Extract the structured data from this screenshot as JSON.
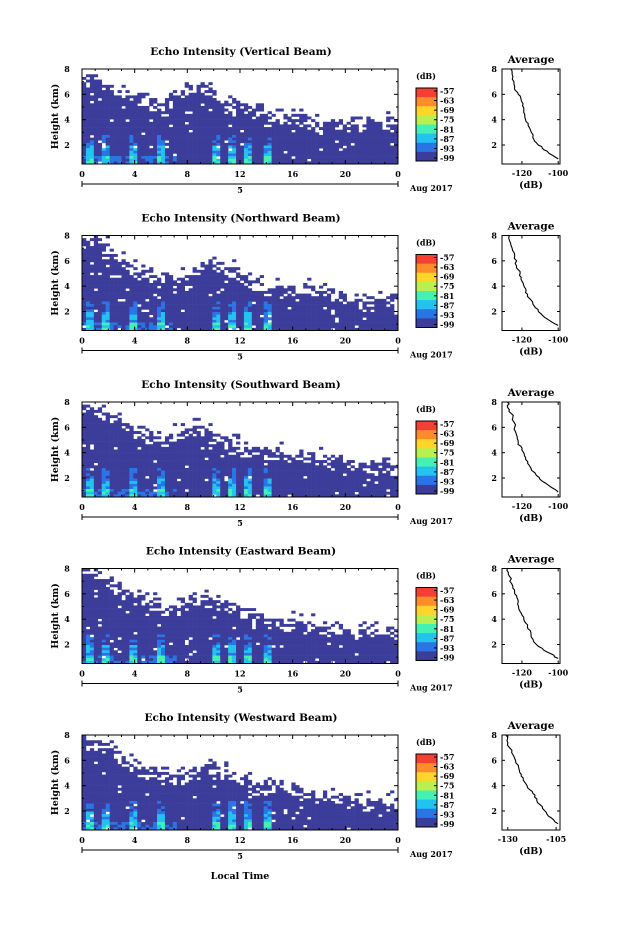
{
  "chart_data": [
    {
      "type": "heatmap",
      "title": "Echo Intensity (Vertical Beam)",
      "ylabel": "Height (km)",
      "x_ticks": [
        "0",
        "4",
        "8",
        "12",
        "16",
        "20",
        "0"
      ],
      "x_day_labels": [
        "5"
      ],
      "date_label": "Aug 2017",
      "y_ticks": [
        "2",
        "4",
        "6",
        "8"
      ],
      "ylim": [
        0.5,
        8.0
      ],
      "colorbar": {
        "label": "(dB)",
        "ticks": [
          "-57",
          "-63",
          "-69",
          "-75",
          "-81",
          "-87",
          "-93",
          "-99"
        ]
      },
      "colors": [
        "#f43f35",
        "#ff8c2a",
        "#ffd52b",
        "#b9f050",
        "#45f0b3",
        "#23c2ef",
        "#2a75e6",
        "#3c3d9a"
      ],
      "cloud_top_km": [
        8,
        7.4,
        6.9,
        6.4,
        6.0,
        5.8,
        5.7,
        6.0,
        6.8,
        6.9,
        6.2,
        5.6,
        5.2,
        5.0,
        4.7,
        4.5,
        4.3,
        4.2,
        4.1,
        4.0,
        4.0,
        4.0,
        4.0,
        4.0,
        4.0
      ],
      "average": {
        "title": "Average",
        "xlabel": "(dB)",
        "x_ticks": [
          "-120",
          "-100"
        ],
        "y_ticks": [
          "2",
          "4",
          "6",
          "8"
        ],
        "xlim": [
          -131,
          -99
        ],
        "points": [
          [
            -126,
            8.0
          ],
          [
            -125,
            7.4
          ],
          [
            -124,
            6.6
          ],
          [
            -122,
            6.0
          ],
          [
            -120,
            5.4
          ],
          [
            -119,
            4.8
          ],
          [
            -118,
            4.0
          ],
          [
            -116,
            3.4
          ],
          [
            -114,
            2.6
          ],
          [
            -111,
            2.0
          ],
          [
            -106,
            1.5
          ],
          [
            -100,
            0.9
          ]
        ]
      }
    },
    {
      "type": "heatmap",
      "title": "Echo Intensity (Northward Beam)",
      "ylabel": "Height (km)",
      "x_ticks": [
        "0",
        "4",
        "8",
        "12",
        "16",
        "20",
        "0"
      ],
      "x_day_labels": [
        "5"
      ],
      "date_label": "Aug 2017",
      "y_ticks": [
        "2",
        "4",
        "6",
        "8"
      ],
      "ylim": [
        0.5,
        8.0
      ],
      "colorbar": {
        "label": "(dB)",
        "ticks": [
          "-57",
          "-63",
          "-69",
          "-75",
          "-81",
          "-87",
          "-93",
          "-99"
        ]
      },
      "colors": [
        "#f43f35",
        "#ff8c2a",
        "#ffd52b",
        "#b9f050",
        "#45f0b3",
        "#23c2ef",
        "#2a75e6",
        "#3c3d9a"
      ],
      "cloud_top_km": [
        8,
        7.8,
        7.2,
        6.4,
        5.6,
        5.2,
        4.9,
        4.6,
        4.8,
        5.6,
        6.0,
        5.8,
        5.2,
        4.6,
        4.2,
        4.0,
        4.0,
        4.0,
        3.8,
        3.6,
        3.4,
        3.3,
        3.2,
        3.2,
        3.1
      ],
      "average": {
        "title": "Average",
        "xlabel": "(dB)",
        "x_ticks": [
          "-120",
          "-100"
        ],
        "y_ticks": [
          "2",
          "4",
          "6",
          "8"
        ],
        "xlim": [
          -131,
          -99
        ],
        "points": [
          [
            -127,
            8.0
          ],
          [
            -126,
            7.2
          ],
          [
            -124,
            6.4
          ],
          [
            -123,
            5.6
          ],
          [
            -121,
            5.0
          ],
          [
            -120,
            4.4
          ],
          [
            -118,
            3.8
          ],
          [
            -117,
            3.2
          ],
          [
            -114,
            2.6
          ],
          [
            -111,
            2.0
          ],
          [
            -106,
            1.4
          ],
          [
            -100,
            0.9
          ]
        ]
      }
    },
    {
      "type": "heatmap",
      "title": "Echo Intensity (Southward Beam)",
      "ylabel": "Height (km)",
      "x_ticks": [
        "0",
        "4",
        "8",
        "12",
        "16",
        "20",
        "0"
      ],
      "x_day_labels": [
        "5"
      ],
      "date_label": "Aug 2017",
      "y_ticks": [
        "2",
        "4",
        "6",
        "8"
      ],
      "ylim": [
        0.5,
        8.0
      ],
      "colorbar": {
        "label": "(dB)",
        "ticks": [
          "-57",
          "-63",
          "-69",
          "-75",
          "-81",
          "-87",
          "-93",
          "-99"
        ]
      },
      "colors": [
        "#f43f35",
        "#ff8c2a",
        "#ffd52b",
        "#b9f050",
        "#45f0b3",
        "#23c2ef",
        "#2a75e6",
        "#3c3d9a"
      ],
      "cloud_top_km": [
        8,
        7.8,
        7.3,
        6.6,
        6.0,
        5.6,
        5.4,
        5.6,
        6.0,
        6.0,
        5.6,
        5.0,
        4.6,
        4.4,
        4.3,
        4.2,
        4.1,
        4.0,
        4.0,
        3.8,
        3.6,
        3.4,
        3.3,
        3.2,
        3.2
      ],
      "average": {
        "title": "Average",
        "xlabel": "(dB)",
        "x_ticks": [
          "-120",
          "-100"
        ],
        "y_ticks": [
          "2",
          "4",
          "6",
          "8"
        ],
        "xlim": [
          -131,
          -99
        ],
        "points": [
          [
            -128,
            8.0
          ],
          [
            -127,
            7.4
          ],
          [
            -125,
            6.8
          ],
          [
            -124,
            6.0
          ],
          [
            -123,
            5.4
          ],
          [
            -122,
            4.8
          ],
          [
            -120,
            4.2
          ],
          [
            -118,
            3.6
          ],
          [
            -116,
            3.0
          ],
          [
            -112,
            2.2
          ],
          [
            -107,
            1.6
          ],
          [
            -100,
            0.9
          ]
        ]
      }
    },
    {
      "type": "heatmap",
      "title": "Echo Intensity (Eastward Beam)",
      "ylabel": "Height (km)",
      "x_ticks": [
        "0",
        "4",
        "8",
        "12",
        "16",
        "20",
        "0"
      ],
      "x_day_labels": [
        "5"
      ],
      "date_label": "Aug 2017",
      "y_ticks": [
        "2",
        "4",
        "6",
        "8"
      ],
      "ylim": [
        0.5,
        8.0
      ],
      "colorbar": {
        "label": "(dB)",
        "ticks": [
          "-57",
          "-63",
          "-69",
          "-75",
          "-81",
          "-87",
          "-93",
          "-99"
        ]
      },
      "colors": [
        "#f43f35",
        "#ff8c2a",
        "#ffd52b",
        "#b9f050",
        "#45f0b3",
        "#23c2ef",
        "#2a75e6",
        "#3c3d9a"
      ],
      "cloud_top_km": [
        8,
        7.8,
        7.4,
        6.6,
        6.0,
        5.6,
        5.3,
        5.2,
        5.6,
        6.0,
        5.8,
        5.4,
        5.0,
        4.6,
        4.4,
        4.2,
        4.0,
        3.8,
        3.6,
        3.5,
        3.4,
        3.3,
        3.2,
        3.1,
        3.0
      ],
      "average": {
        "title": "Average",
        "xlabel": "(dB)",
        "x_ticks": [
          "-120",
          "-100"
        ],
        "y_ticks": [
          "2",
          "4",
          "6",
          "8"
        ],
        "xlim": [
          -131,
          -99
        ],
        "points": [
          [
            -128,
            8.0
          ],
          [
            -127,
            7.4
          ],
          [
            -125,
            6.6
          ],
          [
            -124,
            6.0
          ],
          [
            -122,
            5.4
          ],
          [
            -121,
            4.6
          ],
          [
            -119,
            4.0
          ],
          [
            -117,
            3.4
          ],
          [
            -115,
            2.8
          ],
          [
            -112,
            2.0
          ],
          [
            -106,
            1.4
          ],
          [
            -100,
            0.9
          ]
        ]
      }
    },
    {
      "type": "heatmap",
      "title": "Echo Intensity (Westward Beam)",
      "ylabel": "Height (km)",
      "x_ticks": [
        "0",
        "4",
        "8",
        "12",
        "16",
        "20",
        "0"
      ],
      "x_day_labels": [
        "5"
      ],
      "date_label": "Aug 2017",
      "y_ticks": [
        "2",
        "4",
        "6",
        "8"
      ],
      "ylim": [
        0.5,
        8.0
      ],
      "colorbar": {
        "label": "(dB)",
        "ticks": [
          "-57",
          "-63",
          "-69",
          "-75",
          "-81",
          "-87",
          "-93",
          "-99"
        ]
      },
      "colors": [
        "#f43f35",
        "#ff8c2a",
        "#ffd52b",
        "#b9f050",
        "#45f0b3",
        "#23c2ef",
        "#2a75e6",
        "#3c3d9a"
      ],
      "cloud_top_km": [
        8,
        7.8,
        7.2,
        6.4,
        5.8,
        5.4,
        5.2,
        5.0,
        5.0,
        5.6,
        5.6,
        5.2,
        4.8,
        4.5,
        4.3,
        4.2,
        4.0,
        3.8,
        3.6,
        3.4,
        3.2,
        3.1,
        3.0,
        3.0,
        3.0
      ],
      "average": {
        "title": "Average",
        "xlabel": "(dB)",
        "x_ticks": [
          "-130",
          "-105"
        ],
        "y_ticks": [
          "2",
          "4",
          "6",
          "8"
        ],
        "xlim": [
          -133,
          -103
        ],
        "points": [
          [
            -131,
            8.0
          ],
          [
            -130,
            7.4
          ],
          [
            -128,
            6.6
          ],
          [
            -126,
            6.0
          ],
          [
            -124,
            5.2
          ],
          [
            -122,
            4.6
          ],
          [
            -120,
            4.0
          ],
          [
            -117,
            3.4
          ],
          [
            -115,
            2.8
          ],
          [
            -112,
            2.2
          ],
          [
            -109,
            1.6
          ],
          [
            -104,
            1.0
          ]
        ]
      }
    }
  ],
  "footer": {
    "xlabel": "Local Time"
  }
}
